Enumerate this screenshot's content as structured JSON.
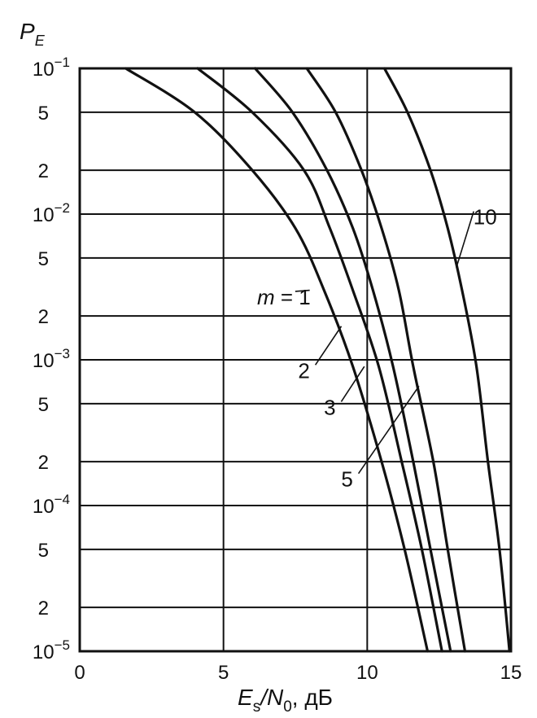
{
  "chart_data": {
    "type": "line",
    "title": "",
    "xlabel_main": "E",
    "xlabel_sub": "s",
    "xlabel_sep": "/N",
    "xlabel_sub2": "0",
    "xlabel_unit": ", дБ",
    "ylabel_main": "P",
    "ylabel_sub": "E",
    "y_scale": "log",
    "xlim": [
      0,
      15
    ],
    "ylim": [
      1e-05,
      0.1
    ],
    "grid": true,
    "x_ticks": [
      {
        "value": 0,
        "label": "0"
      },
      {
        "value": 5,
        "label": "5"
      },
      {
        "value": 10,
        "label": "10"
      },
      {
        "value": 15,
        "label": "15"
      }
    ],
    "y_ticks": [
      {
        "value": 0.1,
        "base": "10",
        "exp": "−1"
      },
      {
        "value": 0.05,
        "label": "5"
      },
      {
        "value": 0.02,
        "label": "2"
      },
      {
        "value": 0.01,
        "base": "10",
        "exp": "−2"
      },
      {
        "value": 0.005,
        "label": "5"
      },
      {
        "value": 0.002,
        "label": "2"
      },
      {
        "value": 0.001,
        "base": "10",
        "exp": "−3"
      },
      {
        "value": 0.0005,
        "label": "5"
      },
      {
        "value": 0.0002,
        "label": "2"
      },
      {
        "value": 0.0001,
        "base": "10",
        "exp": "−4"
      },
      {
        "value": 5e-05,
        "label": "5"
      },
      {
        "value": 2e-05,
        "label": "2"
      },
      {
        "value": 1e-05,
        "base": "10",
        "exp": "−5"
      }
    ],
    "series": [
      {
        "name": "m = 1",
        "points": [
          [
            1.6,
            0.1
          ],
          [
            4.0,
            0.05
          ],
          [
            6.0,
            0.02
          ],
          [
            7.5,
            0.008
          ],
          [
            8.5,
            0.003
          ],
          [
            9.5,
            0.0009
          ],
          [
            10.5,
            0.0002
          ],
          [
            11.3,
            5e-05
          ],
          [
            12.1,
            1e-05
          ]
        ]
      },
      {
        "name": "2",
        "points": [
          [
            4.1,
            0.1
          ],
          [
            6.0,
            0.05
          ],
          [
            7.8,
            0.02
          ],
          [
            8.7,
            0.008
          ],
          [
            9.5,
            0.003
          ],
          [
            10.4,
            0.0009
          ],
          [
            11.2,
            0.0002
          ],
          [
            11.9,
            5e-05
          ],
          [
            12.6,
            1e-05
          ]
        ]
      },
      {
        "name": "3",
        "points": [
          [
            6.1,
            0.1
          ],
          [
            7.4,
            0.05
          ],
          [
            8.6,
            0.02
          ],
          [
            9.5,
            0.008
          ],
          [
            10.2,
            0.003
          ],
          [
            10.9,
            0.0009
          ],
          [
            11.6,
            0.0002
          ],
          [
            12.2,
            5e-05
          ],
          [
            12.9,
            1e-05
          ]
        ]
      },
      {
        "name": "5",
        "points": [
          [
            7.9,
            0.1
          ],
          [
            8.9,
            0.05
          ],
          [
            9.8,
            0.02
          ],
          [
            10.5,
            0.008
          ],
          [
            11.1,
            0.003
          ],
          [
            11.6,
            0.0009
          ],
          [
            12.3,
            0.0002
          ],
          [
            12.8,
            5e-05
          ],
          [
            13.4,
            1e-05
          ]
        ]
      },
      {
        "name": "10",
        "points": [
          [
            10.6,
            0.1
          ],
          [
            11.4,
            0.05
          ],
          [
            12.2,
            0.02
          ],
          [
            12.8,
            0.008
          ],
          [
            13.3,
            0.003
          ],
          [
            13.8,
            0.0009
          ],
          [
            14.2,
            0.0002
          ],
          [
            14.6,
            5e-05
          ],
          [
            14.95,
            1e-05
          ]
        ]
      }
    ],
    "labels": [
      {
        "series": "m = 1",
        "label_prefix": "m",
        "text": "= 1",
        "at": [
          7.1,
          0.0024
        ],
        "tip": [
          8.0,
          0.003
        ]
      },
      {
        "series": "2",
        "text": "2",
        "at": [
          7.8,
          0.00075
        ],
        "tip": [
          9.1,
          0.0017
        ]
      },
      {
        "series": "3",
        "text": "3",
        "at": [
          8.7,
          0.00042
        ],
        "tip": [
          9.9,
          0.0009
        ]
      },
      {
        "series": "5",
        "text": "5",
        "at": [
          9.3,
          0.000135
        ],
        "tip": [
          11.8,
          0.00066
        ]
      },
      {
        "series": "10",
        "text": "10",
        "at": [
          14.1,
          0.0085
        ],
        "tip": [
          13.1,
          0.0043
        ]
      }
    ]
  }
}
